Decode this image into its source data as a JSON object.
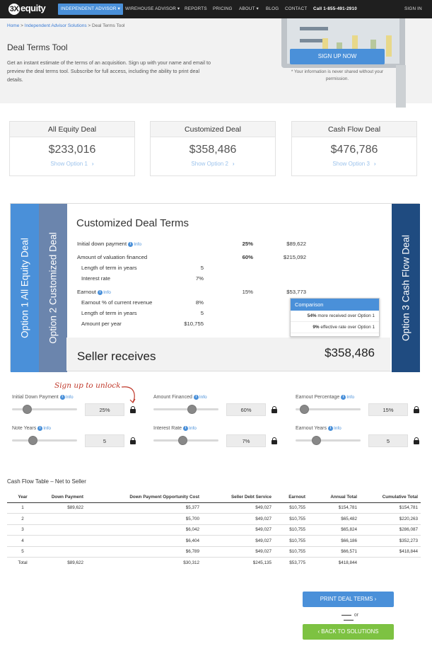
{
  "nav": {
    "logo_mark": "3X",
    "logo_text": "equity",
    "items": [
      {
        "label": "INDEPENDENT ADVISOR ▾"
      },
      {
        "label": "WIREHOUSE ADVISOR ▾"
      },
      {
        "label": "REPORTS"
      },
      {
        "label": "PRICING"
      },
      {
        "label": "ABOUT ▾"
      },
      {
        "label": "BLOG"
      },
      {
        "label": "CONTACT"
      }
    ],
    "phone": "Call 1-855-491-2910",
    "sign_in": "SIGN IN"
  },
  "breadcrumb": {
    "home": "Home",
    "sep": ">",
    "section": "Independent Advisor Solutions",
    "current": "Deal Terms Tool"
  },
  "hero": {
    "title": "Deal Terms Tool",
    "description": "Get an instant estimate of the terms of an acquisition. Sign up with your name and email to preview the deal terms tool. Subscribe for full access, including the ability to print deal details.",
    "signup_button": "SIGN UP NOW",
    "privacy_note": "* Your information is never shared without your permission."
  },
  "options": [
    {
      "title": "All Equity Deal",
      "amount": "$233,016",
      "link": "Show Option 1"
    },
    {
      "title": "Customized Deal",
      "amount": "$358,486",
      "link": "Show Option 2"
    },
    {
      "title": "Cash Flow Deal",
      "amount": "$476,786",
      "link": "Show Option 3"
    }
  ],
  "tabs": {
    "option1": "Option 1 All Equity Deal",
    "option2": "Option 2 Customized Deal",
    "option3": "Option 3 Cash Flow Deal"
  },
  "deal": {
    "title": "Customized Deal Terms",
    "info_label": "Info",
    "down_payment": {
      "label": "Initial down payment",
      "pct": "25%",
      "amount": "$89,622"
    },
    "valuation": {
      "label": "Amount of valuation financed",
      "pct": "60%",
      "amount": "$215,092"
    },
    "term_years": {
      "label": "Length of term in years",
      "value": "5"
    },
    "interest": {
      "label": "Interest rate",
      "value": "7%"
    },
    "earnout": {
      "label": "Earnout",
      "pct": "15%",
      "amount": "$53,773"
    },
    "earnout_pct": {
      "label": "Earnout % of current revenue",
      "value": "8%"
    },
    "earnout_years": {
      "label": "Length of term in years",
      "value": "5"
    },
    "amount_per_year": {
      "label": "Amount per year",
      "value": "$10,755"
    },
    "seller_label": "Seller receives",
    "seller_amount": "$358,486"
  },
  "comparison": {
    "title": "Comparison",
    "line1_bold": "54%",
    "line1_rest": " more received over Option 1",
    "line2_bold": "9%",
    "line2_rest": " effective rate over Option 1"
  },
  "signup_note": "Sign up to unlock",
  "sliders": [
    {
      "label": "Initial Down Payment",
      "value": "25%",
      "level": 0.23
    },
    {
      "label": "Amount Financed",
      "value": "60%",
      "level": 0.59
    },
    {
      "label": "Earnout Percentage",
      "value": "15%",
      "level": 0.13
    },
    {
      "label": "Note Years",
      "value": "5",
      "level": 0.31
    },
    {
      "label": "Interest Rate",
      "value": "7%",
      "level": 0.45
    },
    {
      "label": "Earnout Years",
      "value": "5",
      "level": 0.31
    }
  ],
  "cashflow": {
    "title": "Cash Flow Table – Net to Seller",
    "headers": [
      "Year",
      "Down Payment",
      "Down Payment Opportunity Cost",
      "Seller Debt Service",
      "Earnout",
      "Annual Total",
      "Cumulative Total"
    ],
    "rows": [
      [
        "1",
        "$89,622",
        "$5,377",
        "$49,027",
        "$10,755",
        "$154,781",
        "$154,781"
      ],
      [
        "2",
        "",
        "$5,700",
        "$49,027",
        "$10,755",
        "$65,482",
        "$220,263"
      ],
      [
        "3",
        "",
        "$6,042",
        "$49,027",
        "$10,755",
        "$65,824",
        "$286,087"
      ],
      [
        "4",
        "",
        "$6,404",
        "$49,027",
        "$10,755",
        "$66,186",
        "$352,273"
      ],
      [
        "5",
        "",
        "$6,789",
        "$49,027",
        "$10,755",
        "$66,571",
        "$418,844"
      ]
    ],
    "total": [
      "Total",
      "$89,622",
      "$30,312",
      "$245,135",
      "$53,775",
      "$418,844",
      ""
    ]
  },
  "buttons": {
    "print": "PRINT DEAL TERMS ›",
    "or": "or",
    "back": "‹  BACK TO SOLUTIONS"
  },
  "colors": {
    "accent": "#4a90d9",
    "tab1": "#4a90d9",
    "tab2": "#6b85ad",
    "tab3": "#1f4b80",
    "green": "#7dc242"
  }
}
